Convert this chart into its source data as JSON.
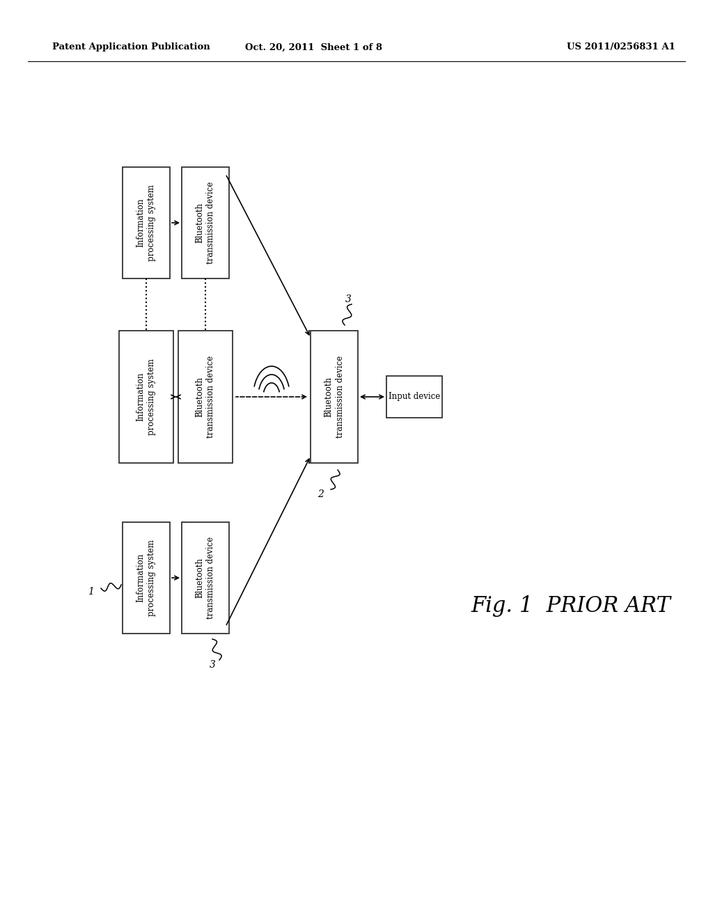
{
  "bg_color": "#ffffff",
  "header_left": "Patent Application Publication",
  "header_center": "Oct. 20, 2011  Sheet 1 of 8",
  "header_right": "US 2011/0256831 A1",
  "fig_label": "Fig. 1  PRIOR ART"
}
